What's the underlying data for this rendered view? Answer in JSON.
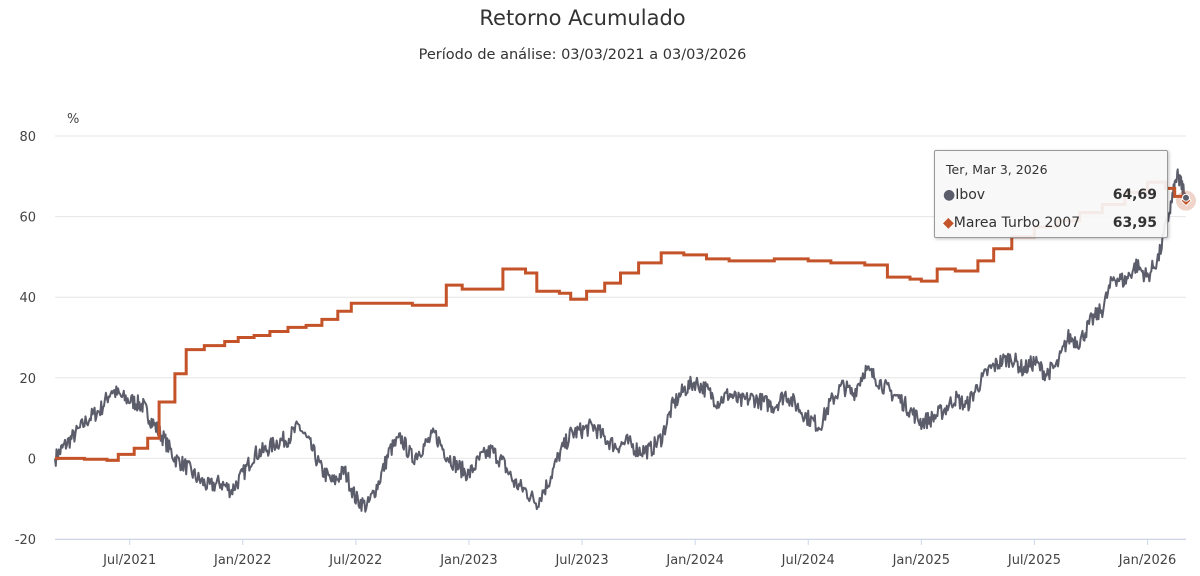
{
  "chart_data": {
    "type": "line",
    "title": "Retorno Acumulado",
    "subtitle": "Período de análise: 03/03/2021 a 03/03/2026",
    "ylabel": "%",
    "ylim": [
      -20,
      80
    ],
    "yticks": [
      -20,
      0,
      20,
      40,
      60,
      80
    ],
    "xrange": [
      2021.17,
      2026.17
    ],
    "xticks": [
      {
        "x": 2021.5,
        "label": "Jul/2021"
      },
      {
        "x": 2022.0,
        "label": "Jan/2022"
      },
      {
        "x": 2022.5,
        "label": "Jul/2022"
      },
      {
        "x": 2023.0,
        "label": "Jan/2023"
      },
      {
        "x": 2023.5,
        "label": "Jul/2023"
      },
      {
        "x": 2024.0,
        "label": "Jan/2024"
      },
      {
        "x": 2024.5,
        "label": "Jul/2024"
      },
      {
        "x": 2025.0,
        "label": "Jan/2025"
      },
      {
        "x": 2025.5,
        "label": "Jul/2025"
      },
      {
        "x": 2026.0,
        "label": "Jan/2026"
      }
    ],
    "series": [
      {
        "name": "Ibov",
        "color": "#5b5d6b",
        "style": "line",
        "points": [
          [
            2021.17,
            0
          ],
          [
            2021.21,
            3
          ],
          [
            2021.26,
            6
          ],
          [
            2021.32,
            10
          ],
          [
            2021.37,
            12
          ],
          [
            2021.42,
            17
          ],
          [
            2021.47,
            15
          ],
          [
            2021.52,
            14
          ],
          [
            2021.56,
            13
          ],
          [
            2021.6,
            9
          ],
          [
            2021.65,
            5
          ],
          [
            2021.7,
            0
          ],
          [
            2021.75,
            -2
          ],
          [
            2021.8,
            -5
          ],
          [
            2021.85,
            -7
          ],
          [
            2021.9,
            -6
          ],
          [
            2021.95,
            -8
          ],
          [
            2022.0,
            -4
          ],
          [
            2022.05,
            1
          ],
          [
            2022.1,
            2
          ],
          [
            2022.15,
            4
          ],
          [
            2022.2,
            5
          ],
          [
            2022.25,
            8
          ],
          [
            2022.3,
            3
          ],
          [
            2022.35,
            -3
          ],
          [
            2022.4,
            -6
          ],
          [
            2022.45,
            -3
          ],
          [
            2022.5,
            -10
          ],
          [
            2022.55,
            -12
          ],
          [
            2022.6,
            -6
          ],
          [
            2022.65,
            2
          ],
          [
            2022.7,
            5
          ],
          [
            2022.75,
            0
          ],
          [
            2022.8,
            3
          ],
          [
            2022.85,
            6
          ],
          [
            2022.9,
            1
          ],
          [
            2022.95,
            -2
          ],
          [
            2023.0,
            -4
          ],
          [
            2023.05,
            0
          ],
          [
            2023.1,
            2
          ],
          [
            2023.15,
            -1
          ],
          [
            2023.2,
            -6
          ],
          [
            2023.25,
            -8
          ],
          [
            2023.3,
            -11
          ],
          [
            2023.35,
            -6
          ],
          [
            2023.4,
            1
          ],
          [
            2023.45,
            6
          ],
          [
            2023.5,
            7
          ],
          [
            2023.55,
            8
          ],
          [
            2023.6,
            5
          ],
          [
            2023.65,
            3
          ],
          [
            2023.7,
            4
          ],
          [
            2023.75,
            2
          ],
          [
            2023.8,
            2
          ],
          [
            2023.85,
            5
          ],
          [
            2023.9,
            13
          ],
          [
            2023.95,
            17
          ],
          [
            2024.0,
            19
          ],
          [
            2024.05,
            17
          ],
          [
            2024.1,
            14
          ],
          [
            2024.15,
            16
          ],
          [
            2024.2,
            14
          ],
          [
            2024.25,
            15
          ],
          [
            2024.3,
            14
          ],
          [
            2024.35,
            13
          ],
          [
            2024.4,
            16
          ],
          [
            2024.45,
            13
          ],
          [
            2024.5,
            10
          ],
          [
            2024.55,
            8
          ],
          [
            2024.6,
            14
          ],
          [
            2024.65,
            18
          ],
          [
            2024.7,
            16
          ],
          [
            2024.75,
            22
          ],
          [
            2024.8,
            20
          ],
          [
            2024.85,
            17
          ],
          [
            2024.9,
            15
          ],
          [
            2024.95,
            12
          ],
          [
            2025.0,
            9
          ],
          [
            2025.05,
            10
          ],
          [
            2025.1,
            12
          ],
          [
            2025.15,
            15
          ],
          [
            2025.2,
            13
          ],
          [
            2025.25,
            18
          ],
          [
            2025.3,
            22
          ],
          [
            2025.35,
            24
          ],
          [
            2025.4,
            25
          ],
          [
            2025.45,
            22
          ],
          [
            2025.5,
            24
          ],
          [
            2025.55,
            21
          ],
          [
            2025.6,
            23
          ],
          [
            2025.65,
            30
          ],
          [
            2025.7,
            29
          ],
          [
            2025.75,
            34
          ],
          [
            2025.8,
            37
          ],
          [
            2025.85,
            45
          ],
          [
            2025.9,
            44
          ],
          [
            2025.95,
            48
          ],
          [
            2026.0,
            45
          ],
          [
            2026.05,
            50
          ],
          [
            2026.1,
            62
          ],
          [
            2026.13,
            70
          ],
          [
            2026.15,
            68
          ],
          [
            2026.17,
            64.69
          ]
        ]
      },
      {
        "name": "Marea Turbo 2007",
        "color": "#c4532a",
        "style": "step",
        "points": [
          [
            2021.17,
            0
          ],
          [
            2021.3,
            -0.2
          ],
          [
            2021.4,
            -0.5
          ],
          [
            2021.45,
            1
          ],
          [
            2021.52,
            2.5
          ],
          [
            2021.58,
            5
          ],
          [
            2021.63,
            14
          ],
          [
            2021.7,
            21
          ],
          [
            2021.75,
            27
          ],
          [
            2021.83,
            28
          ],
          [
            2021.92,
            29
          ],
          [
            2021.98,
            30
          ],
          [
            2022.05,
            30.5
          ],
          [
            2022.12,
            31.5
          ],
          [
            2022.2,
            32.5
          ],
          [
            2022.28,
            33
          ],
          [
            2022.35,
            34.5
          ],
          [
            2022.42,
            36.5
          ],
          [
            2022.48,
            38.5
          ],
          [
            2022.62,
            38.5
          ],
          [
            2022.75,
            38
          ],
          [
            2022.9,
            43
          ],
          [
            2022.97,
            42
          ],
          [
            2023.15,
            47
          ],
          [
            2023.25,
            46
          ],
          [
            2023.3,
            41.5
          ],
          [
            2023.4,
            41
          ],
          [
            2023.45,
            39.5
          ],
          [
            2023.52,
            41.5
          ],
          [
            2023.6,
            43.5
          ],
          [
            2023.67,
            46
          ],
          [
            2023.75,
            48.5
          ],
          [
            2023.85,
            51
          ],
          [
            2023.95,
            50.5
          ],
          [
            2024.05,
            49.5
          ],
          [
            2024.15,
            49
          ],
          [
            2024.35,
            49.5
          ],
          [
            2024.5,
            49
          ],
          [
            2024.6,
            48.5
          ],
          [
            2024.75,
            48
          ],
          [
            2024.85,
            45
          ],
          [
            2024.95,
            44.5
          ],
          [
            2025.0,
            44
          ],
          [
            2025.07,
            47
          ],
          [
            2025.15,
            46.5
          ],
          [
            2025.25,
            49
          ],
          [
            2025.32,
            52
          ],
          [
            2025.4,
            55
          ],
          [
            2025.5,
            57.5
          ],
          [
            2025.6,
            59
          ],
          [
            2025.7,
            61
          ],
          [
            2025.8,
            63
          ],
          [
            2025.9,
            66
          ],
          [
            2026.0,
            68.5
          ],
          [
            2026.08,
            67
          ],
          [
            2026.12,
            65
          ],
          [
            2026.17,
            63.95
          ]
        ]
      }
    ],
    "tooltip": {
      "date": "Ter, Mar 3, 2026",
      "rows": [
        {
          "name": "Ibov",
          "value": "64,69",
          "color": "#5b5d6b",
          "marker": "circle"
        },
        {
          "name": "Marea Turbo 2007",
          "value": "63,95",
          "color": "#c4532a",
          "marker": "diamond"
        }
      ]
    }
  }
}
